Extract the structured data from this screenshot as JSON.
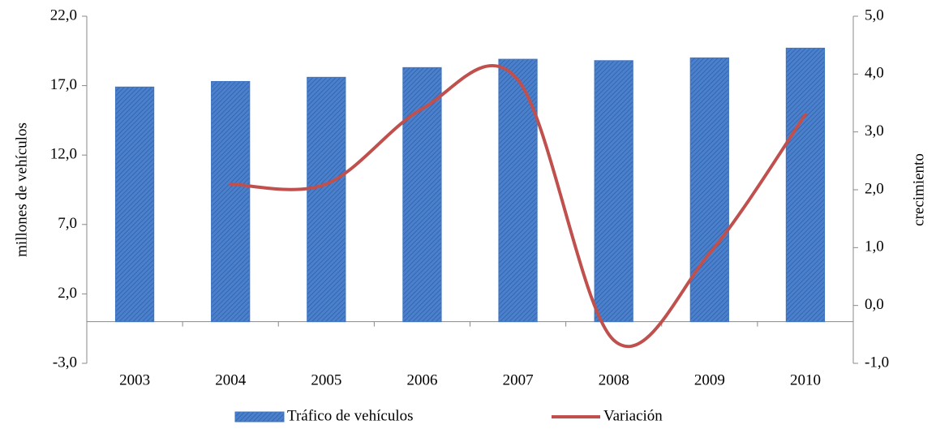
{
  "chart_data": {
    "type": "bar-line",
    "categories": [
      "2003",
      "2004",
      "2005",
      "2006",
      "2007",
      "2008",
      "2009",
      "2010"
    ],
    "series": [
      {
        "name": "Tráfico de vehículos",
        "type": "bar",
        "color": "#3f74c0",
        "values": [
          16.9,
          17.3,
          17.6,
          18.3,
          18.9,
          18.8,
          19.0,
          19.7
        ]
      },
      {
        "name": "Variación",
        "type": "line",
        "color": "#c0504d",
        "axis": "y2",
        "values": [
          null,
          2.1,
          2.1,
          3.4,
          3.9,
          -0.6,
          0.9,
          3.3
        ]
      }
    ],
    "y_label": "millones de vehículos",
    "y2_label": "crecimiento",
    "ylim": [
      -3,
      22
    ],
    "yticks": [
      {
        "value": -3,
        "label": "-3,0"
      },
      {
        "value": 2,
        "label": "2,0"
      },
      {
        "value": 7,
        "label": "7,0"
      },
      {
        "value": 12,
        "label": "12,0"
      },
      {
        "value": 17,
        "label": "17,0"
      },
      {
        "value": 22,
        "label": "22,0"
      }
    ],
    "y2lim": [
      -1,
      5
    ],
    "y2ticks": [
      {
        "value": -1,
        "label": "-1,0"
      },
      {
        "value": 0,
        "label": "0,0"
      },
      {
        "value": 1,
        "label": "1,0"
      },
      {
        "value": 2,
        "label": "2,0"
      },
      {
        "value": 3,
        "label": "3,0"
      },
      {
        "value": 4,
        "label": "4,0"
      },
      {
        "value": 5,
        "label": "5,0"
      }
    ],
    "legend": "bottom"
  }
}
